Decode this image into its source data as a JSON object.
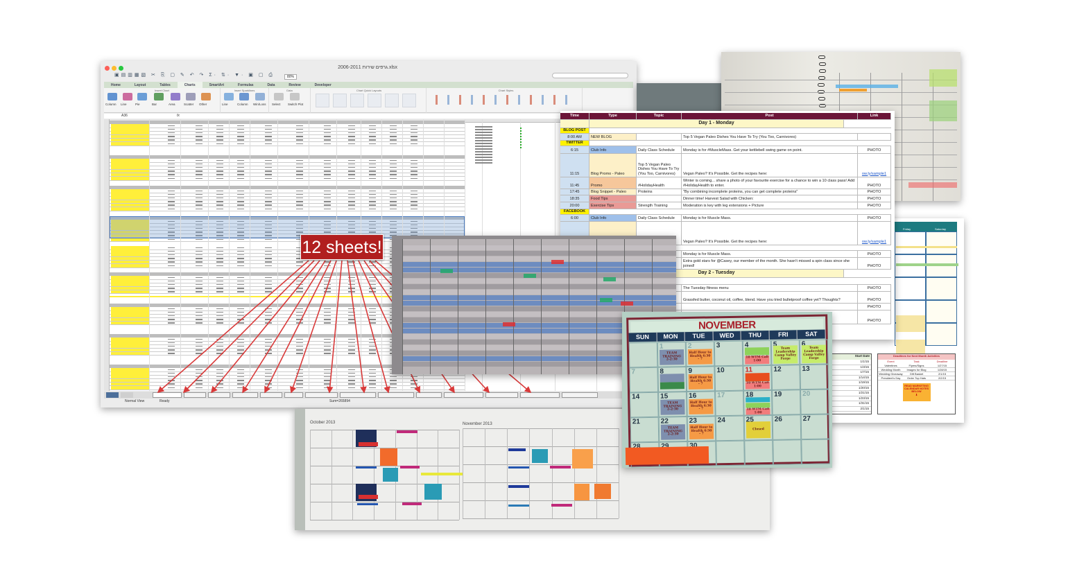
{
  "excel": {
    "title": "גרפים שירות 2006-2011.xlsx",
    "zoom": "80%",
    "ribbon_tabs": [
      "Home",
      "Layout",
      "Tables",
      "Charts",
      "SmartArt",
      "Formulas",
      "Data",
      "Review",
      "Developer"
    ],
    "active_tab": "Charts",
    "groups": {
      "insert_chart": "Insert Chart",
      "insert_sparklines": "Insert Sparklines",
      "data": "Data",
      "quick_layouts": "Chart Quick Layouts",
      "chart_styles": "Chart Styles"
    },
    "buttons": [
      "Column",
      "Line",
      "Pie",
      "Bar",
      "Area",
      "Scatter",
      "Other",
      "Line",
      "Column",
      "Win/Loss",
      "Select",
      "Switch Plot"
    ],
    "cell_ref": "A36",
    "fx": "fx",
    "status": {
      "view": "Normal View",
      "state": "Ready",
      "sum": "Sum=265894"
    }
  },
  "callout": "12 sheets!",
  "schedule": {
    "headers": [
      "Time",
      "Type",
      "Topic",
      "Post",
      "Link"
    ],
    "day1": "Day 1 - Monday",
    "day2": "Day 2 - Tuesday",
    "sections": {
      "blog": "BLOG POST",
      "twitter": "TWITTER",
      "facebook": "FACEBOOK"
    },
    "rows": [
      {
        "time": "8:00 AM",
        "type": "NEW BLOG",
        "topic": "",
        "post": "Top 5 Vegan Paleo Dishes You Have To Try (You Too, Carnivores)",
        "link": ""
      },
      {
        "time": "6:15",
        "type": "Club Info",
        "topic": "Daily Class Schedule",
        "post": "Monday is for #MuscleMass. Get your kettlebell swing game on point.",
        "link": "PHOTO"
      },
      {
        "time": "11:15",
        "type": "Blog Promo - Paleo",
        "topic": "Top 5 Vegan Paleo Dishes You Have To Try (You Too, Carnivores)",
        "post": "Vegan Paleo? It's Possible. Get the recipes here:",
        "link": "ow.ly/sample1"
      },
      {
        "time": "11:45",
        "type": "Promo",
        "topic": "#HolidayHealth",
        "post": "Winter is coming... share a photo of your favourite exercise for a chance to win a 10 class pass! Add #HolidayHealth to enter.",
        "link": "PHOTO"
      },
      {
        "time": "17:45",
        "type": "Blog Snippet - Paleo",
        "topic": "Proteins",
        "post": "\"By combining incomplete proteins, you can get complete proteins\"",
        "link": "PHOTO"
      },
      {
        "time": "18:35",
        "type": "Food Tips",
        "topic": "",
        "post": "Dinner time! Harvest Salad with Chicken:",
        "link": "PHOTO"
      },
      {
        "time": "20:00",
        "type": "Exercise Tips",
        "topic": "Strength Training",
        "post": "Moderation is key with leg extensions + Picture",
        "link": "PHOTO"
      },
      {
        "time": "6:00",
        "type": "Club Info",
        "topic": "Daily Class Schedule",
        "post": "Monday is for Muscle Mass.",
        "link": "PHOTO"
      },
      {
        "time": "",
        "type": "",
        "topic": "Top 5 Vegan Paleo",
        "post": "Vegan Paleo? It's Possible. Get the recipes here:",
        "link": "ow.ly/sample1"
      },
      {
        "time": "",
        "type": "",
        "topic": "",
        "post": "Monday is for Muscle Mass.",
        "link": "PHOTO"
      },
      {
        "time": "",
        "type": "",
        "topic": "",
        "post": "Extra gold stars for @Casey, our member of the month. She hasn't missed a spin class since she joined!",
        "link": "PHOTO"
      },
      {
        "time": "",
        "type": "",
        "topic": "",
        "post": "The Tuesday fitness menu",
        "link": "PHOTO"
      },
      {
        "time": "",
        "type": "",
        "topic": "",
        "post": "Grassfed butter, coconut oil, coffee, blend. Have you tried bulletproof coffee yet? Thoughts?",
        "link": "PHOTO"
      },
      {
        "time": "",
        "type": "",
        "topic": "",
        "post": "",
        "link": "PHOTO"
      },
      {
        "time": "",
        "type": "",
        "topic": "",
        "post": "piration to",
        "link": "PHOTO"
      }
    ],
    "colors": {
      "header": "#6b1538",
      "section": "#fff200",
      "day": "#fdf7c7",
      "time": "#cfe0f1",
      "club": "#9fc0ea",
      "blog": "#fdf0c8",
      "promo": "#f6c79b",
      "tips": "#e99a96"
    }
  },
  "november": {
    "month": "NOVEMBER",
    "days": [
      "SUN",
      "MON",
      "TUE",
      "WED",
      "THU",
      "FRI",
      "SAT"
    ],
    "notes": [
      {
        "text": "TEAM TRAINING 2-2:30",
        "color": "#7e8fae"
      },
      {
        "text": "Half Hour to Health 6:30 - 7",
        "color": "#f59a45"
      },
      {
        "text": "Team Leadership Camp Valley Forge",
        "color": "#c6ec6a"
      },
      {
        "text": "10 WTM Call 1:00",
        "color": "#f27c7c"
      },
      {
        "text": "Closed",
        "color": "#e2cf3a"
      }
    ]
  },
  "wall_calendar": {
    "months": [
      "October 2013",
      "November 2013"
    ]
  },
  "right_calendar": {
    "deadlines_title": "Deadlines for Next Month Activities",
    "deadline_headers": [
      "Event",
      "Task",
      "Deadline"
    ],
    "deadlines": [
      [
        "Valentines",
        "Flyers/Signs",
        "1/27/15"
      ],
      [
        "Wedding Month",
        "Images for Blog",
        "1/28/15"
      ],
      [
        "Wedding Giveaway",
        "Gift Basket",
        "2/1/15"
      ],
      [
        "President's Day",
        "Order Top Hats",
        "2/2/15"
      ]
    ],
    "start_header": "Start Date",
    "start_dates": [
      "1/1/15",
      "1/3/15",
      "1/7/15",
      "1/14/15",
      "1/19/15",
      "1/20/15",
      "1/21/15",
      "1/23/15",
      "1/31/15",
      "2/1/15"
    ],
    "notes_banner": "READ MARKETING CALENDAR NOTES BELOW",
    "day_headers": [
      "Friday",
      "Saturday"
    ]
  }
}
